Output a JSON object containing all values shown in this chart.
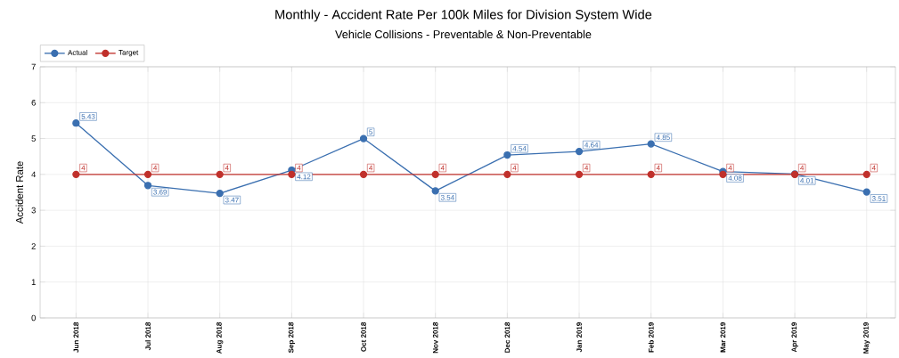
{
  "chart_data": {
    "type": "line",
    "title": "Monthly - Accident Rate Per 100k Miles for Division System Wide",
    "subtitle": "Vehicle Collisions - Preventable & Non-Preventable",
    "ylabel": "Accident Rate",
    "categories": [
      "Jun 2018",
      "Jul 2018",
      "Aug 2018",
      "Sep 2018",
      "Oct 2018",
      "Nov 2018",
      "Dec 2018",
      "Jan 2019",
      "Feb 2019",
      "Mar 2019",
      "Apr 2019",
      "May 2019"
    ],
    "series": [
      {
        "name": "Actual",
        "color": "#3a6fb0",
        "values": [
          5.43,
          3.69,
          3.47,
          4.12,
          5,
          3.54,
          4.54,
          4.64,
          4.85,
          4.08,
          4.01,
          3.51
        ],
        "value_labels": [
          "5.43",
          "3.69",
          "3.47",
          "4.12",
          "5",
          "3.54",
          "4.54",
          "4.64",
          "4.85",
          "4.08",
          "4.01",
          "3.51"
        ]
      },
      {
        "name": "Target",
        "color": "#c0302b",
        "values": [
          4,
          4,
          4,
          4,
          4,
          4,
          4,
          4,
          4,
          4,
          4,
          4
        ],
        "value_labels": [
          "4",
          "4",
          "4",
          "4",
          "4",
          "4",
          "4",
          "4",
          "4",
          "4",
          "4",
          "4"
        ]
      }
    ],
    "ylim": [
      0,
      7
    ],
    "yticks": [
      0,
      1,
      2,
      3,
      4,
      5,
      6,
      7
    ],
    "grid": true,
    "legend": "top left",
    "marker": "circle",
    "line_style": "solid"
  }
}
